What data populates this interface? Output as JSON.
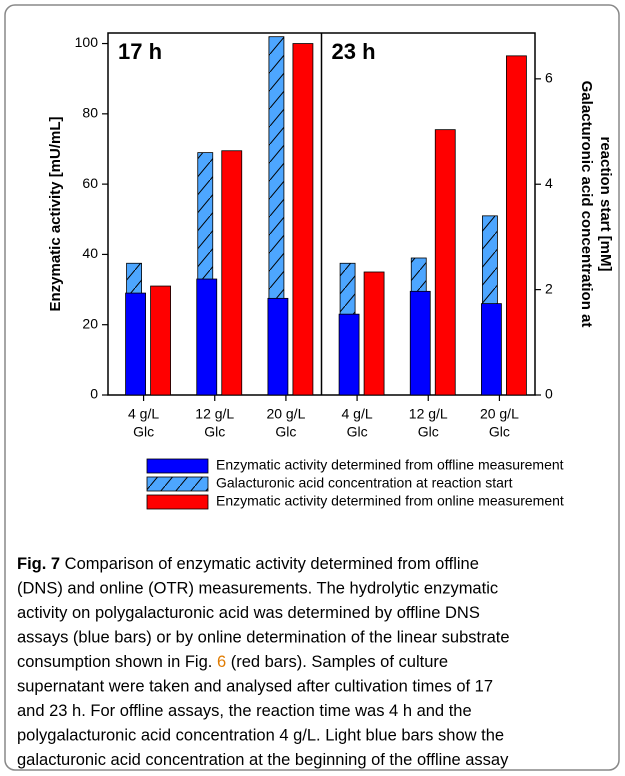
{
  "chart_data": {
    "type": "bar",
    "panels": [
      "17 h",
      "23 h"
    ],
    "categories": [
      [
        "4 g/L",
        "Glc"
      ],
      [
        "12 g/L",
        "Glc"
      ],
      [
        "20 g/L",
        "Glc"
      ],
      [
        "4 g/L",
        "Glc"
      ],
      [
        "12 g/L",
        "Glc"
      ],
      [
        "20 g/L",
        "Glc"
      ]
    ],
    "ylabel": "Enzymatic activity   [mU/mL]",
    "y2label": [
      "Galacturonic acid concentration at",
      "reaction start   [mM]"
    ],
    "ylim": [
      0,
      103
    ],
    "yticks": [
      0,
      20,
      40,
      60,
      80,
      100
    ],
    "y2lim": [
      0,
      6.87
    ],
    "y2ticks": [
      0,
      2,
      4,
      6
    ],
    "series": [
      {
        "name": "Enzymatic activity determined from offline measurement",
        "color": "#0000ff",
        "values": [
          29,
          33,
          27.5,
          23,
          29.5,
          26
        ]
      },
      {
        "name": "Galacturonic acid concentration at reaction start",
        "color": "#4da6ff",
        "pattern": "hatch",
        "axis": "y2",
        "values": [
          2.5,
          4.6,
          6.8,
          2.5,
          2.6,
          3.4
        ]
      },
      {
        "name": "Enzymatic activity determined from online measurement",
        "color": "#ff0000",
        "values": [
          31,
          69.5,
          100,
          35,
          75.5,
          96.5
        ]
      }
    ]
  },
  "caption": {
    "label": "Fig. 7",
    "lines": [
      [
        " Comparison of enzymatic activity determined from offline"
      ],
      [
        "(DNS) and online (OTR) measurements. The hydrolytic enzymatic"
      ],
      [
        "activity on polygalacturonic acid was determined by offline DNS"
      ],
      [
        "assays (blue bars) or by online determination of the linear substrate"
      ],
      [
        "consumption shown in Fig. ",
        "6",
        " (red bars). Samples of culture"
      ],
      [
        "supernatant were taken and analysed after cultivation times of 17"
      ],
      [
        "and 23 h. For offline assays, the reaction time was 4 h and the"
      ],
      [
        "polygalacturonic acid concentration 4 g/L. Light blue bars show the"
      ],
      [
        "galacturonic acid concentration at the beginning of the offline assay"
      ]
    ]
  }
}
